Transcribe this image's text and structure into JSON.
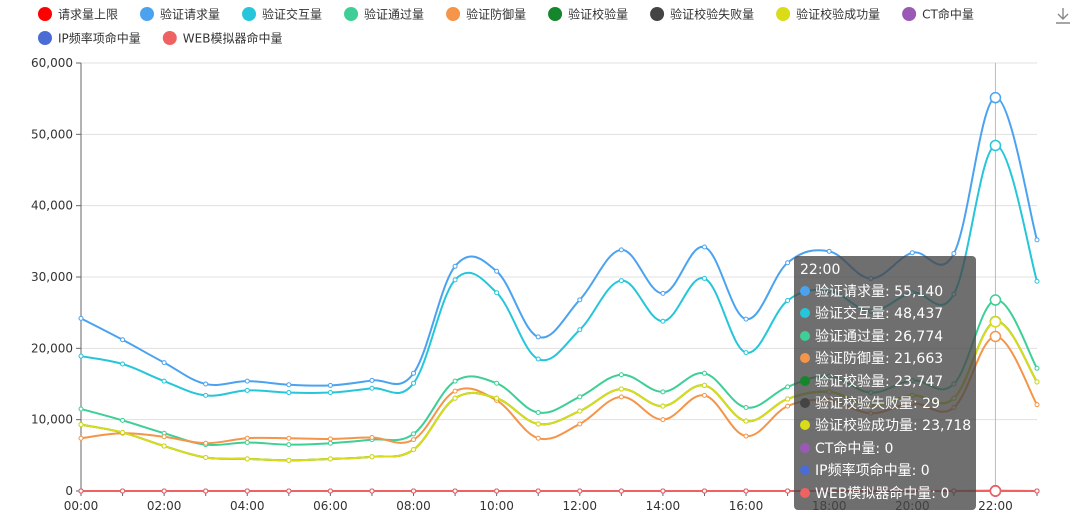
{
  "chart_data": {
    "type": "line",
    "x": [
      "00:00",
      "01:00",
      "02:00",
      "03:00",
      "04:00",
      "05:00",
      "06:00",
      "07:00",
      "08:00",
      "09:00",
      "10:00",
      "11:00",
      "12:00",
      "13:00",
      "14:00",
      "15:00",
      "16:00",
      "17:00",
      "18:00",
      "19:00",
      "20:00",
      "21:00",
      "22:00",
      "23:00"
    ],
    "x_tick_labels": [
      "00:00",
      "02:00",
      "04:00",
      "06:00",
      "08:00",
      "10:00",
      "12:00",
      "14:00",
      "16:00",
      "18:00",
      "20:00",
      "22:00"
    ],
    "y_ticks": [
      0,
      10000,
      20000,
      30000,
      40000,
      50000,
      60000
    ],
    "y_tick_labels": [
      "0",
      "10,000",
      "20,000",
      "30,000",
      "40,000",
      "50,000",
      "60,000"
    ],
    "ylim": [
      0,
      60000
    ],
    "grid": "horizontal",
    "legend_position": "top-left",
    "series": [
      {
        "name": "请求量上限",
        "color": "#ff0000",
        "values": [
          0,
          0,
          0,
          0,
          0,
          0,
          0,
          0,
          0,
          0,
          0,
          0,
          0,
          0,
          0,
          0,
          0,
          0,
          0,
          0,
          0,
          0,
          0,
          0
        ]
      },
      {
        "name": "验证请求量",
        "color": "#4ba3f0",
        "values": [
          24200,
          21200,
          18000,
          15000,
          15400,
          14900,
          14800,
          15500,
          16500,
          31500,
          30800,
          21600,
          26800,
          33800,
          27700,
          34200,
          24100,
          32000,
          33600,
          29800,
          33400,
          33300,
          55140,
          35200
        ]
      },
      {
        "name": "验证交互量",
        "color": "#26c6da",
        "values": [
          18900,
          17800,
          15400,
          13400,
          14100,
          13800,
          13800,
          14400,
          15100,
          29600,
          27800,
          18500,
          22600,
          29500,
          23800,
          29800,
          19400,
          26700,
          28100,
          25200,
          27800,
          27600,
          48437,
          29400
        ]
      },
      {
        "name": "验证通过量",
        "color": "#3ecf96",
        "values": [
          11500,
          9900,
          8100,
          6500,
          6800,
          6500,
          6700,
          7200,
          8000,
          15400,
          15100,
          11000,
          13200,
          16300,
          13900,
          16500,
          11700,
          14600,
          16100,
          13800,
          15500,
          15000,
          26774,
          17200
        ]
      },
      {
        "name": "验证防御量",
        "color": "#f4954a",
        "values": [
          7400,
          8100,
          7600,
          6700,
          7400,
          7400,
          7300,
          7500,
          7200,
          14000,
          12700,
          7400,
          9400,
          13200,
          10000,
          13400,
          7700,
          11900,
          12700,
          10900,
          12300,
          11700,
          21663,
          12100
        ]
      },
      {
        "name": "验证校验量",
        "color": "#16862c",
        "values": [
          9300,
          8200,
          6300,
          4700,
          4500,
          4300,
          4500,
          4800,
          5800,
          13000,
          13000,
          9400,
          11200,
          14300,
          11900,
          14800,
          9800,
          12900,
          13900,
          12000,
          13400,
          13000,
          23747,
          15300
        ]
      },
      {
        "name": "验证校验失败量",
        "color": "#444444",
        "values": [
          0,
          0,
          0,
          0,
          0,
          0,
          0,
          0,
          0,
          0,
          0,
          0,
          0,
          0,
          0,
          0,
          0,
          0,
          0,
          0,
          0,
          0,
          29,
          0
        ]
      },
      {
        "name": "验证校验成功量",
        "color": "#d9dc17",
        "values": [
          9300,
          8200,
          6300,
          4700,
          4500,
          4300,
          4500,
          4800,
          5800,
          13000,
          13000,
          9400,
          11200,
          14300,
          11900,
          14800,
          9800,
          12900,
          13900,
          12000,
          13400,
          13000,
          23718,
          15300
        ]
      },
      {
        "name": "CT命中量",
        "color": "#9b59b6",
        "values": [
          0,
          0,
          0,
          0,
          0,
          0,
          0,
          0,
          0,
          0,
          0,
          0,
          0,
          0,
          0,
          0,
          0,
          0,
          0,
          0,
          0,
          0,
          0,
          0
        ]
      },
      {
        "name": "IP频率项命中量",
        "color": "#4a6cd4",
        "values": [
          0,
          0,
          0,
          0,
          0,
          0,
          0,
          0,
          0,
          0,
          0,
          0,
          0,
          0,
          0,
          0,
          0,
          0,
          0,
          0,
          0,
          0,
          0,
          0
        ]
      },
      {
        "name": "WEB模拟器命中量",
        "color": "#ef6262",
        "values": [
          0,
          0,
          0,
          0,
          0,
          0,
          0,
          0,
          0,
          0,
          0,
          0,
          0,
          0,
          0,
          0,
          0,
          0,
          0,
          0,
          0,
          0,
          0,
          0
        ]
      }
    ],
    "highlight_index": 22
  },
  "tooltip": {
    "title": "22:00",
    "rows": [
      {
        "label": "验证请求量: 55,140",
        "color": "#4ba3f0"
      },
      {
        "label": "验证交互量: 48,437",
        "color": "#26c6da"
      },
      {
        "label": "验证通过量: 26,774",
        "color": "#3ecf96"
      },
      {
        "label": "验证防御量: 21,663",
        "color": "#f4954a"
      },
      {
        "label": "验证校验量: 23,747",
        "color": "#16862c"
      },
      {
        "label": "验证校验失败量: 29",
        "color": "#444444"
      },
      {
        "label": "验证校验成功量: 23,718",
        "color": "#d9dc17"
      },
      {
        "label": "CT命中量: 0",
        "color": "#9b59b6"
      },
      {
        "label": "IP频率项命中量: 0",
        "color": "#4a6cd4"
      },
      {
        "label": "WEB模拟器命中量: 0",
        "color": "#ef6262"
      }
    ]
  },
  "toolbar": {
    "download_icon": "download-icon"
  }
}
